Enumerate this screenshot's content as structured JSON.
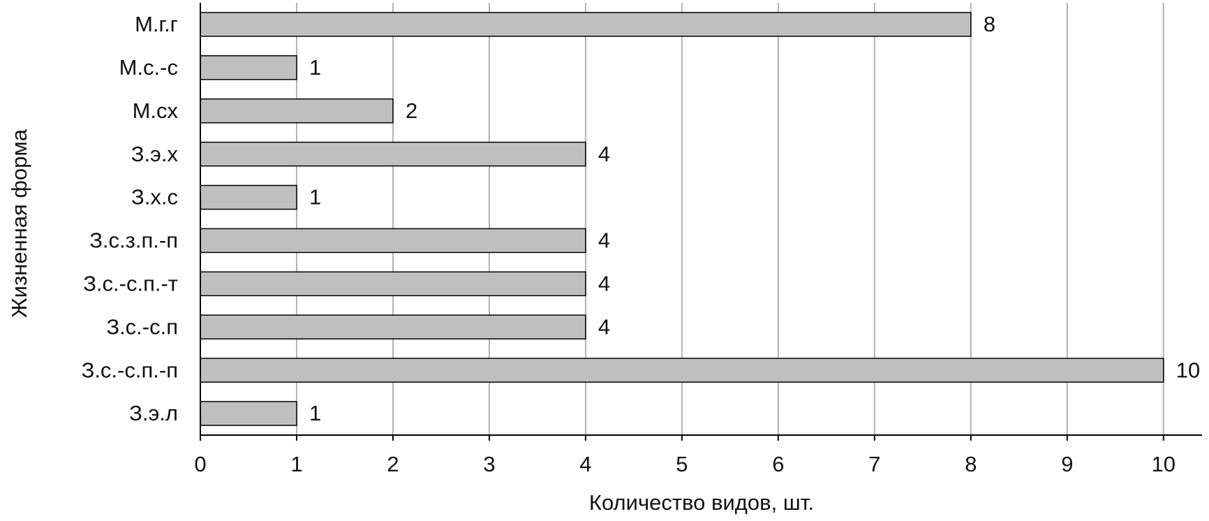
{
  "chart_data": {
    "type": "bar",
    "orientation": "horizontal",
    "x_label": "Количество видов, шт.",
    "y_label": "Жизненная форма",
    "categories": [
      "М.г.г",
      "М.с.-с",
      "М.сх",
      "З.э.х",
      "З.х.с",
      "З.с.з.п.-п",
      "З.с.-с.п.-т",
      "З.с.-с.п",
      "З.с.-с.п.-п",
      "З.э.л"
    ],
    "values": [
      8,
      1,
      2,
      4,
      1,
      4,
      4,
      4,
      10,
      1
    ],
    "color": "#bfbfbf",
    "xlim": [
      0,
      10.4
    ],
    "xticks": [
      0,
      1,
      2,
      3,
      4,
      5,
      6,
      7,
      8,
      9,
      10
    ],
    "grid": true
  }
}
